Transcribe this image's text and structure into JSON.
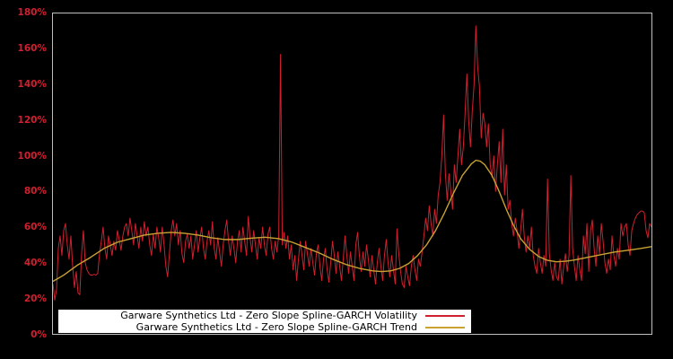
{
  "figure": {
    "background": "#000000",
    "plot_border_color": "#bfbfbf"
  },
  "axis": {
    "color": "#d02030",
    "labels": [
      "180%",
      "160%",
      "140%",
      "120%",
      "100%",
      "80%",
      "60%",
      "40%",
      "20%",
      "0%"
    ]
  },
  "legend": {
    "position": "bottom-left",
    "background": "#ffffff",
    "items": [
      {
        "label": "Garware Synthetics Ltd - Zero Slope Spline-GARCH Volatility",
        "color": "#d02030"
      },
      {
        "label": "Garware Synthetics Ltd - Zero Slope Spline-GARCH Trend",
        "color": "#c9a232"
      }
    ]
  },
  "chart_data": {
    "type": "line",
    "title": "",
    "xlabel": "",
    "ylabel": "",
    "ylim": [
      0,
      180
    ],
    "y_tick_labels": [
      "0%",
      "20%",
      "40%",
      "60%",
      "80%",
      "100%",
      "120%",
      "140%",
      "160%",
      "180%"
    ],
    "x_tick_labels_visible": false,
    "grid": false,
    "legend_position": "bottom",
    "units": "percent",
    "series": [
      {
        "name": "Garware Synthetics Ltd - Zero Slope Spline-GARCH Volatility",
        "color": "#d02030",
        "values": [
          28,
          19,
          25,
          48,
          55,
          44,
          58,
          62,
          50,
          42,
          55,
          38,
          26,
          35,
          23,
          22,
          45,
          58,
          40,
          36,
          34,
          33,
          33,
          33.5,
          33,
          34,
          45,
          52,
          60,
          48,
          42,
          55,
          50,
          44,
          52,
          47,
          58,
          53,
          47,
          55,
          60,
          62,
          55,
          65,
          58,
          50,
          62,
          55,
          48,
          60,
          52,
          63,
          55,
          60,
          50,
          44,
          56,
          48,
          60,
          54,
          46,
          60,
          50,
          38,
          32,
          45,
          58,
          64,
          55,
          62,
          50,
          58,
          45,
          40,
          52,
          56,
          48,
          55,
          42,
          50,
          58,
          46,
          54,
          60,
          48,
          42,
          52,
          58,
          50,
          63,
          48,
          42,
          54,
          46,
          38,
          50,
          58,
          64,
          52,
          44,
          55,
          48,
          40,
          52,
          58,
          46,
          60,
          52,
          44,
          66,
          54,
          46,
          58,
          50,
          42,
          54,
          48,
          60,
          50,
          44,
          56,
          60,
          48,
          42,
          52,
          46,
          55,
          157,
          50,
          57,
          48,
          55,
          42,
          50,
          36,
          44,
          30,
          42,
          52,
          44,
          36,
          52,
          45,
          38,
          48,
          40,
          33,
          45,
          50,
          38,
          30,
          42,
          48,
          36,
          29,
          40,
          52,
          44,
          34,
          46,
          38,
          30,
          42,
          55,
          44,
          34,
          46,
          38,
          30,
          50,
          57,
          44,
          35,
          46,
          38,
          50,
          42,
          32,
          44,
          36,
          28,
          40,
          48,
          38,
          30,
          44,
          53,
          40,
          32,
          44,
          36,
          28,
          59,
          45,
          35,
          28,
          26,
          38,
          32,
          27,
          38,
          44,
          36,
          30,
          42,
          38,
          46,
          55,
          65,
          58,
          72,
          62,
          55,
          70,
          62,
          78,
          85,
          100,
          123,
          90,
          75,
          90,
          80,
          70,
          95,
          85,
          100,
          115,
          95,
          105,
          124,
          146,
          120,
          105,
          125,
          140,
          173,
          150,
          139,
          110,
          124,
          118,
          105,
          118,
          95,
          88,
          100,
          80,
          95,
          108,
          85,
          115,
          78,
          95,
          70,
          75,
          62,
          55,
          65,
          58,
          48,
          58,
          70,
          55,
          46,
          55,
          48,
          60,
          44,
          38,
          34,
          48,
          40,
          34,
          44,
          38,
          87,
          45,
          36,
          30,
          40,
          32,
          30,
          42,
          28,
          38,
          45,
          35,
          44,
          89,
          48,
          38,
          30,
          44,
          36,
          30,
          55,
          45,
          62,
          35,
          58,
          64,
          48,
          38,
          55,
          45,
          62,
          52,
          40,
          34,
          42,
          36,
          55,
          44,
          38,
          48,
          42,
          62,
          55,
          60,
          62,
          50,
          44,
          58,
          62,
          65,
          67,
          68,
          69,
          69,
          68,
          58,
          54,
          62,
          60
        ]
      },
      {
        "name": "Garware Synthetics Ltd - Zero Slope Spline-GARCH Trend",
        "color": "#c9a232",
        "points": [
          [
            0,
            29.5
          ],
          [
            6,
            33
          ],
          [
            13.5,
            38.5
          ],
          [
            21,
            43
          ],
          [
            28.5,
            48
          ],
          [
            36,
            51.5
          ],
          [
            43.5,
            53.5
          ],
          [
            51,
            55.5
          ],
          [
            58.5,
            56.5
          ],
          [
            66,
            57
          ],
          [
            73.5,
            56.5
          ],
          [
            81,
            55.5
          ],
          [
            88.5,
            54
          ],
          [
            96,
            53
          ],
          [
            103.5,
            53
          ],
          [
            111,
            53.8
          ],
          [
            118.5,
            54.3
          ],
          [
            126,
            53.5
          ],
          [
            133.5,
            51.5
          ],
          [
            141,
            48.5
          ],
          [
            148.5,
            45.5
          ],
          [
            156,
            42
          ],
          [
            163.5,
            39
          ],
          [
            171,
            36.8
          ],
          [
            178.5,
            35.4
          ],
          [
            183.5,
            35
          ],
          [
            188.5,
            35.4
          ],
          [
            193.5,
            36.8
          ],
          [
            198.5,
            39.5
          ],
          [
            203.5,
            44
          ],
          [
            208.5,
            50
          ],
          [
            213.5,
            58
          ],
          [
            218.5,
            68
          ],
          [
            223.5,
            79
          ],
          [
            228.5,
            89
          ],
          [
            233.5,
            95.5
          ],
          [
            236,
            97.5
          ],
          [
            238.5,
            97
          ],
          [
            241,
            95
          ],
          [
            245,
            89
          ],
          [
            249,
            80
          ],
          [
            253,
            70
          ],
          [
            257,
            61
          ],
          [
            261,
            53.5
          ],
          [
            266,
            47.5
          ],
          [
            271,
            43.5
          ],
          [
            276,
            41.3
          ],
          [
            281,
            40.5
          ],
          [
            286,
            40.8
          ],
          [
            291,
            41.5
          ],
          [
            298.5,
            43
          ],
          [
            306,
            44.5
          ],
          [
            313.5,
            46
          ],
          [
            321,
            47
          ],
          [
            328,
            48
          ],
          [
            334,
            49
          ]
        ]
      }
    ]
  }
}
